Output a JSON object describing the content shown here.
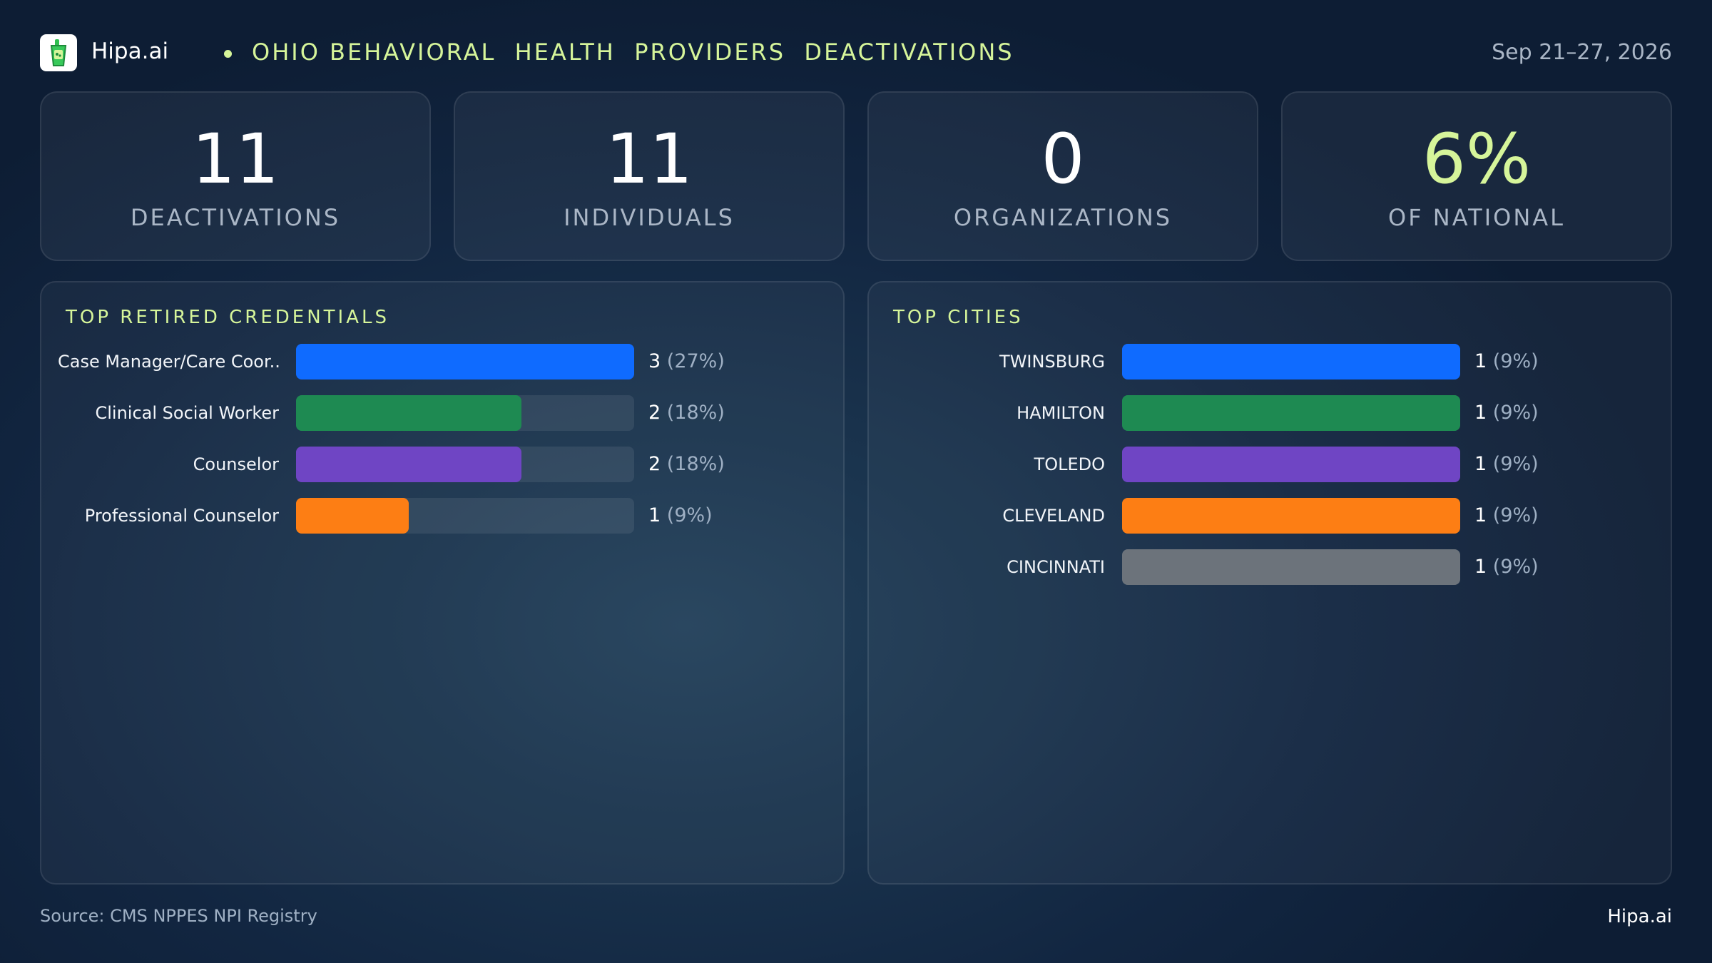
{
  "header": {
    "brand": "Hipa.ai",
    "title": "OHIO BEHAVIORAL  HEALTH  PROVIDERS  DEACTIVATIONS",
    "date": "Sep 21–27, 2026",
    "logo_icon": "drink-cup-icon"
  },
  "kpis": [
    {
      "value": "11",
      "label": "DEACTIVATIONS",
      "accent": false
    },
    {
      "value": "11",
      "label": "INDIVIDUALS",
      "accent": false
    },
    {
      "value": "0",
      "label": "ORGANIZATIONS",
      "accent": false
    },
    {
      "value": "6%",
      "label": "OF NATIONAL",
      "accent": true
    }
  ],
  "chart_data": [
    {
      "type": "bar",
      "title": "TOP RETIRED CREDENTIALS",
      "orientation": "horizontal",
      "max": 3,
      "categories": [
        "Case Manager/Care Coor...",
        "Clinical Social Worker",
        "Counselor",
        "Professional  Counselor"
      ],
      "values": [
        3,
        2,
        2,
        1
      ],
      "value_labels": [
        "3",
        "2",
        "2",
        "1"
      ],
      "percent_labels": [
        "(27%)",
        "(18%)",
        "(18%)",
        "(9%)"
      ],
      "colors": [
        "#0f6bff",
        "#1e8a52",
        "#6f45c4",
        "#fd7e14"
      ]
    },
    {
      "type": "bar",
      "title": "TOP CITIES",
      "orientation": "horizontal",
      "max": 1,
      "categories": [
        "TWINSBURG",
        "HAMILTON",
        "TOLEDO",
        "CLEVELAND",
        "CINCINNATI"
      ],
      "values": [
        1,
        1,
        1,
        1,
        1
      ],
      "value_labels": [
        "1",
        "1",
        "1",
        "1",
        "1"
      ],
      "percent_labels": [
        "(9%)",
        "(9%)",
        "(9%)",
        "(9%)",
        "(9%)"
      ],
      "colors": [
        "#0f6bff",
        "#1e8a52",
        "#6f45c4",
        "#fd7e14",
        "#6c737b"
      ]
    }
  ],
  "footer": {
    "source": "Source: CMS NPPES NPI Registry",
    "brand": "Hipa.ai"
  }
}
